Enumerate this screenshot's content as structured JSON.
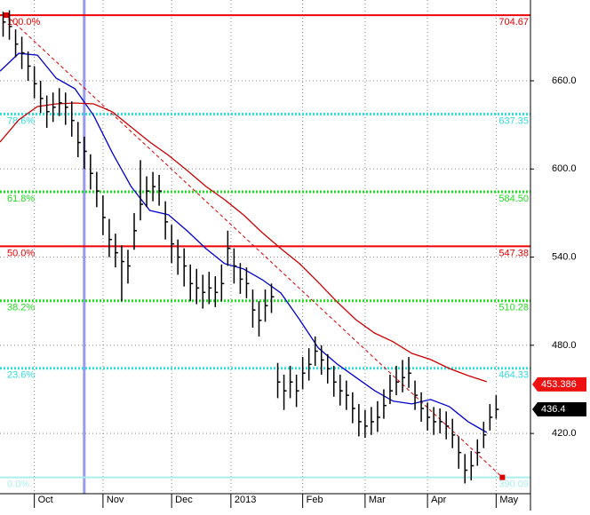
{
  "chart_data": {
    "type": "ohlc",
    "xlim": [
      0,
      170
    ],
    "ylim": [
      379,
      715
    ],
    "xticks": [
      {
        "value": 11,
        "label": "Oct"
      },
      {
        "value": 33,
        "label": "Nov"
      },
      {
        "value": 55,
        "label": "Dec"
      },
      {
        "value": 74,
        "label": "2013"
      },
      {
        "value": 97,
        "label": "Feb"
      },
      {
        "value": 117,
        "label": "Mar"
      },
      {
        "value": 137,
        "label": "Apr"
      },
      {
        "value": 159,
        "label": "May"
      }
    ],
    "yticks": [
      {
        "value": 420,
        "label": "420.0"
      },
      {
        "value": 480,
        "label": "480.0"
      },
      {
        "value": 540,
        "label": "540.0"
      },
      {
        "value": 600,
        "label": "600.0"
      },
      {
        "value": 660,
        "label": "660.0"
      }
    ],
    "grid": true,
    "x": [
      1,
      3,
      5,
      7,
      9,
      11,
      13,
      15,
      17,
      19,
      21,
      23,
      25,
      27,
      29,
      31,
      33,
      35,
      37,
      39,
      41,
      43,
      45,
      47,
      49,
      51,
      53,
      55,
      57,
      59,
      61,
      63,
      65,
      67,
      69,
      71,
      73,
      75,
      77,
      79,
      81,
      83,
      85,
      87,
      89,
      91,
      93,
      95,
      97,
      99,
      101,
      103,
      105,
      107,
      109,
      111,
      113,
      115,
      117,
      119,
      121,
      123,
      125,
      127,
      129,
      131,
      133,
      135,
      137,
      139,
      141,
      143,
      145,
      147,
      149,
      151,
      153,
      155,
      157,
      159
    ],
    "high": [
      707,
      708,
      695,
      690,
      680,
      670,
      660,
      650,
      652,
      655,
      652,
      646,
      632,
      622,
      610,
      598,
      582,
      566,
      556,
      548,
      545,
      570,
      606,
      595,
      598,
      596,
      578,
      562,
      552,
      546,
      535,
      532,
      528,
      530,
      527,
      535,
      558,
      546,
      536,
      533,
      518,
      510,
      518,
      522,
      468,
      460,
      466,
      460,
      472,
      478,
      486,
      480,
      474,
      466,
      460,
      456,
      448,
      440,
      436,
      438,
      442,
      450,
      460,
      466,
      470,
      472,
      456,
      448,
      441,
      438,
      437,
      435,
      430,
      418,
      406,
      408,
      416,
      428,
      440,
      446
    ],
    "low": [
      690,
      688,
      676,
      668,
      660,
      648,
      638,
      628,
      632,
      636,
      630,
      622,
      608,
      600,
      586,
      574,
      555,
      540,
      533,
      510,
      522,
      545,
      565,
      574,
      578,
      575,
      552,
      536,
      528,
      520,
      510,
      508,
      505,
      508,
      506,
      510,
      534,
      522,
      515,
      512,
      492,
      486,
      496,
      502,
      444,
      436,
      444,
      438,
      450,
      456,
      466,
      460,
      454,
      445,
      439,
      436,
      427,
      418,
      417,
      419,
      421,
      430,
      440,
      446,
      448,
      451,
      436,
      428,
      422,
      419,
      420,
      416,
      410,
      396,
      386,
      388,
      398,
      410,
      422,
      430
    ],
    "close": [
      700,
      697,
      685,
      679,
      670,
      658,
      648,
      639,
      642,
      645,
      642,
      633,
      618,
      612,
      597,
      585,
      567,
      552,
      543,
      537,
      534,
      558,
      576,
      585,
      588,
      585,
      564,
      549,
      540,
      534,
      522,
      519,
      516,
      519,
      516,
      522,
      546,
      534,
      525,
      522,
      504,
      497,
      507,
      513,
      455,
      449,
      455,
      449,
      461,
      467,
      476,
      470,
      464,
      455,
      449,
      446,
      437,
      428,
      425,
      428,
      431,
      439,
      449,
      455,
      458,
      461,
      446,
      437,
      431,
      428,
      428,
      425,
      419,
      407,
      395,
      398,
      407,
      419,
      431,
      436.4
    ],
    "bar_color": "#000000",
    "averages": [
      {
        "color": "#0000cc",
        "x": [
          0,
          6,
          12,
          18,
          24,
          30,
          36,
          42,
          48,
          54,
          60,
          66,
          72,
          78,
          84,
          90,
          96,
          102,
          108,
          114,
          120,
          126,
          132,
          138,
          144,
          150,
          156
        ],
        "values": [
          666.6,
          678.7,
          677.5,
          661.8,
          654.6,
          636.4,
          611.0,
          588.1,
          571.8,
          568.8,
          557.9,
          545.8,
          535.6,
          532.0,
          524.7,
          515.6,
          497.5,
          478.2,
          467.3,
          458.3,
          449.2,
          442.0,
          440.1,
          443.1,
          438.3,
          428.0,
          420.7
        ]
      },
      {
        "color": "#cc0000",
        "x": [
          0,
          6,
          12,
          18,
          24,
          30,
          36,
          42,
          48,
          54,
          60,
          66,
          72,
          78,
          84,
          90,
          96,
          102,
          108,
          114,
          120,
          126,
          132,
          138,
          144,
          150,
          156
        ],
        "values": [
          618.3,
          633.4,
          642.5,
          644.3,
          644.9,
          644.3,
          638.9,
          628.6,
          618.3,
          609.3,
          599.0,
          588.1,
          579.1,
          568.8,
          556.7,
          545.8,
          535.6,
          522.9,
          509.6,
          497.5,
          488.4,
          482.4,
          474.5,
          470.3,
          464.2,
          459.4,
          455.2
        ]
      }
    ],
    "fibonacci": {
      "labels": [
        "100.0%",
        "78.6%",
        "61.8%",
        "50.0%",
        "38.2%",
        "23.6%",
        "0.0%"
      ],
      "values": [
        704.67,
        637.35,
        584.5,
        547.38,
        510.28,
        464.33,
        390.09
      ],
      "value_labels": [
        "704.67",
        "637.35",
        "584.50",
        "547.38",
        "510.28",
        "464.33",
        "390.09"
      ],
      "colors": [
        "#ee0000",
        "#33dddd",
        "#22dd22",
        "#ee0000",
        "#22dd22",
        "#33dddd",
        "#aaeeee"
      ],
      "dashed": [
        false,
        true,
        true,
        false,
        true,
        true,
        false
      ]
    },
    "trendline": {
      "x": [
        2,
        161
      ],
      "values": [
        704.67,
        390.09
      ],
      "color": "#dd0000"
    },
    "cursor_x": 27,
    "price_markers": [
      {
        "value": 453.386,
        "color": "#ee1111"
      },
      {
        "value": 436.4,
        "color": "#000000"
      }
    ]
  }
}
